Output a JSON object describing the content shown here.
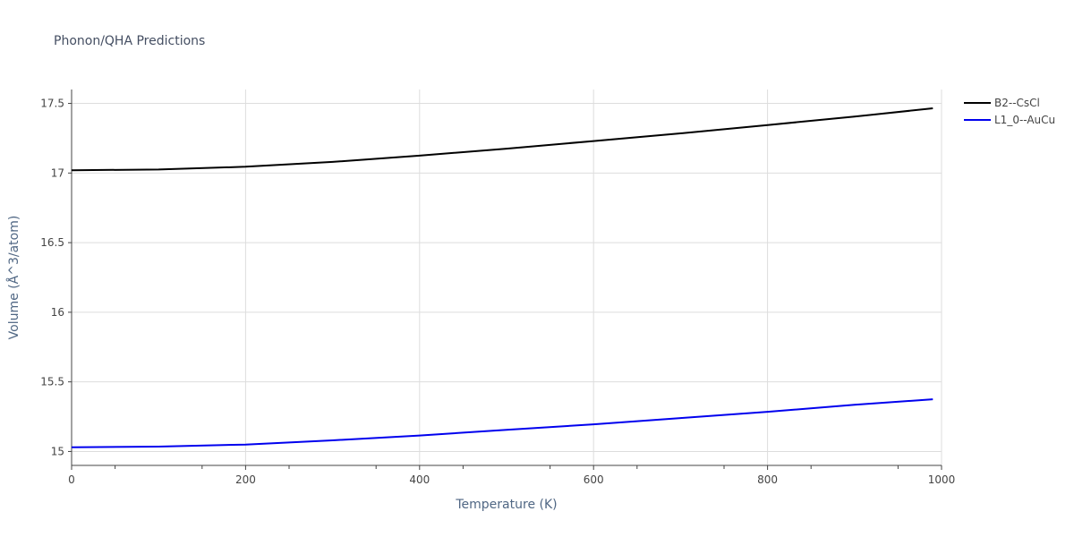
{
  "chart_data": {
    "type": "line",
    "title": "Phonon/QHA Predictions",
    "xlabel": "Temperature (K)",
    "ylabel": "Volume (Å^3/atom)",
    "xlim": [
      0,
      1000
    ],
    "ylim": [
      14.9,
      17.6
    ],
    "xticks": [
      0,
      200,
      400,
      600,
      800,
      1000
    ],
    "xtick_labels": [
      "0",
      "200",
      "400",
      "600",
      "800",
      "1000"
    ],
    "yticks": [
      15,
      15.5,
      16,
      16.5,
      17,
      17.5
    ],
    "ytick_labels": [
      "15",
      "15.5",
      "16",
      "16.5",
      "17",
      "17.5"
    ],
    "grid": true,
    "legend_position": "top-right",
    "series": [
      {
        "name": "B2--CsCl",
        "color": "#000000",
        "x": [
          0,
          100,
          200,
          300,
          400,
          500,
          600,
          700,
          800,
          900,
          990
        ],
        "y": [
          17.02,
          17.025,
          17.045,
          17.08,
          17.125,
          17.175,
          17.23,
          17.285,
          17.345,
          17.405,
          17.465
        ]
      },
      {
        "name": "L1_0--AuCu",
        "color": "#0000ee",
        "x": [
          0,
          100,
          200,
          300,
          400,
          500,
          600,
          700,
          800,
          900,
          990
        ],
        "y": [
          15.03,
          15.035,
          15.05,
          15.08,
          15.115,
          15.155,
          15.195,
          15.24,
          15.285,
          15.335,
          15.375
        ]
      }
    ]
  }
}
